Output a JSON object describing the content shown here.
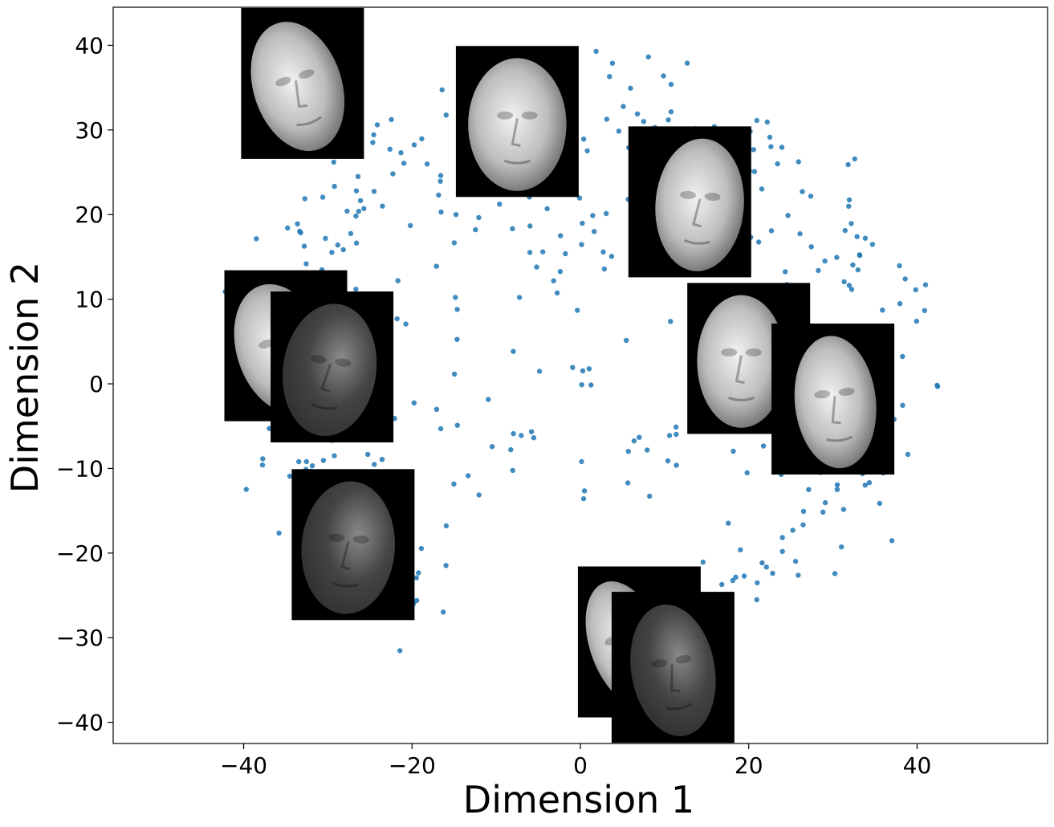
{
  "chart_data": {
    "type": "scatter",
    "title": "",
    "xlabel": "Dimension 1",
    "ylabel": "Dimension 2",
    "xlim": [
      -55.5,
      55.5
    ],
    "ylim": [
      -42.5,
      44.5
    ],
    "xticks": [
      -40,
      -20,
      0,
      20,
      40
    ],
    "yticks": [
      -40,
      -30,
      -20,
      -10,
      0,
      10,
      20,
      30,
      40
    ],
    "xtick_labels": [
      "−40",
      "−20",
      "0",
      "20",
      "40"
    ],
    "ytick_labels": [
      "−40",
      "−30",
      "−20",
      "−10",
      "0",
      "10",
      "20",
      "30",
      "40"
    ],
    "grid": false,
    "point_color": "#1f77b4",
    "point_count": 400,
    "x_range": [
      -50.5,
      50.5
    ],
    "y_range": [
      -37,
      40.5
    ],
    "thumbnail_icon": "face-render-thumbnail",
    "thumbnails": [
      {
        "x": -33,
        "y": 35.5,
        "pose": "tilted-left"
      },
      {
        "x": -7.5,
        "y": 31,
        "pose": "frontal-down"
      },
      {
        "x": 13,
        "y": 21.5,
        "pose": "three-quarter"
      },
      {
        "x": 20,
        "y": 3,
        "pose": "three-quarter-left"
      },
      {
        "x": 30,
        "y": -1.8,
        "pose": "profile-left"
      },
      {
        "x": -35,
        "y": 4.5,
        "pose": "tilted-left"
      },
      {
        "x": -29.5,
        "y": 2,
        "pose": "profile-right"
      },
      {
        "x": -27,
        "y": -19,
        "pose": "profile-right-dark"
      },
      {
        "x": 7,
        "y": -30.5,
        "pose": "profile-left-up"
      },
      {
        "x": 11,
        "y": -33.5,
        "pose": "profile-left-dark"
      }
    ]
  }
}
